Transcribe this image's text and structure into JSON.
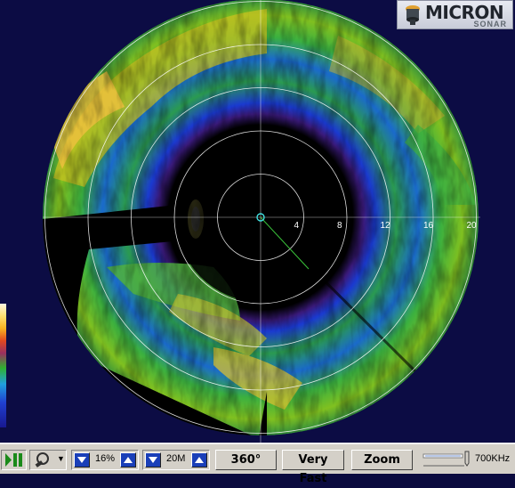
{
  "logo": {
    "brand": "MICRON",
    "sub": "SONAR"
  },
  "scale": {
    "labels": [
      "4",
      "8",
      "12",
      "16",
      "20"
    ]
  },
  "toolbar": {
    "gain_value": "16%",
    "range_value": "20M",
    "sector_label": "360°",
    "speed_label": "Very Fast",
    "zoom_label": "Zoom",
    "frequency_value": "700KHz"
  },
  "colors": {
    "background": "#0c0c44",
    "rings": "#ffffff",
    "heading_line": "#3ac43a",
    "toolbar": "#d4d0c8",
    "accent": "#1a3fb8"
  },
  "icons": [
    "play-pause-icon",
    "sonar-head-icon",
    "decrease-arrow-icon",
    "increase-arrow-icon",
    "slider-icon"
  ]
}
